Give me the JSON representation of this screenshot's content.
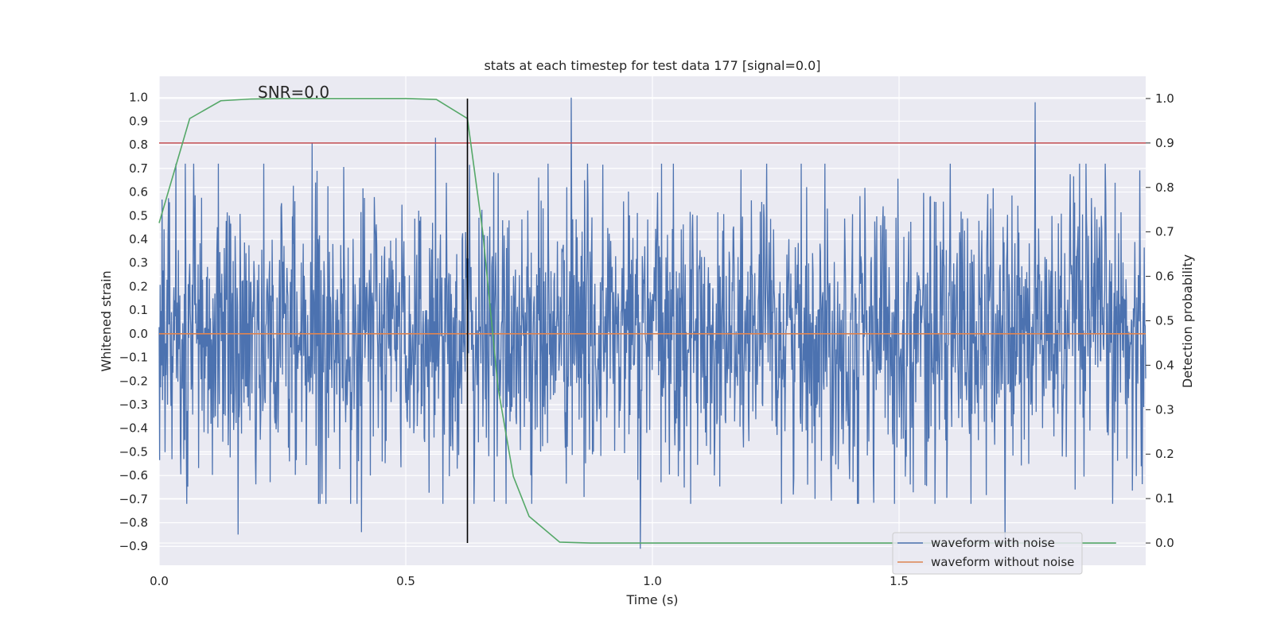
{
  "chart_data": {
    "type": "line",
    "title": "stats at each timestep for test data 177 [signal=0.0]",
    "xlabel": "Time (s)",
    "ylabel": "Whitened strain",
    "ylabel_right": "Detection probability",
    "annotation": "SNR=0.0",
    "xlim": [
      0.0,
      2.0
    ],
    "ylim": [
      -0.98,
      1.09
    ],
    "ylim_right": [
      -0.05,
      1.05
    ],
    "x_ticks": [
      0.0,
      0.5,
      1.0,
      1.5
    ],
    "x_tick_labels": [
      "0.0",
      "0.5",
      "1.0",
      "1.5"
    ],
    "y_ticks": [
      1.0,
      0.9,
      0.8,
      0.7,
      0.6,
      0.5,
      0.4,
      0.3,
      0.2,
      0.1,
      0.0,
      -0.1,
      -0.2,
      -0.3,
      -0.4,
      -0.5,
      -0.6,
      -0.7,
      -0.8,
      -0.9
    ],
    "y_tick_labels": [
      "1.0",
      "0.9",
      "0.8",
      "0.7",
      "0.6",
      "0.5",
      "0.4",
      "0.3",
      "0.2",
      "0.1",
      "0.0",
      "−0.1",
      "−0.2",
      "−0.3",
      "−0.4",
      "−0.5",
      "−0.6",
      "−0.7",
      "−0.8",
      "−0.9"
    ],
    "y_right_ticks": [
      1.0,
      0.9,
      0.8,
      0.7,
      0.6,
      0.5,
      0.4,
      0.3,
      0.2,
      0.1,
      0.0
    ],
    "y_right_tick_labels": [
      "1.0",
      "0.9",
      "0.8",
      "0.7",
      "0.6",
      "0.5",
      "0.4",
      "0.3",
      "0.2",
      "0.1",
      "0.0"
    ],
    "grid": true,
    "legend_position": "lower-right",
    "series": [
      {
        "name": "waveform with noise",
        "color": "#4c72b0",
        "kind": "noise",
        "n_samples": 2000,
        "std": 0.3,
        "peaks": [
          {
            "x": 0.835,
            "y": 1.0
          },
          {
            "x": 1.776,
            "y": 0.98
          },
          {
            "x": 0.31,
            "y": 0.81
          },
          {
            "x": 0.56,
            "y": 0.83
          },
          {
            "x": 0.975,
            "y": -0.91
          },
          {
            "x": 1.715,
            "y": -0.87
          },
          {
            "x": 0.16,
            "y": -0.85
          },
          {
            "x": 0.41,
            "y": -0.84
          }
        ]
      },
      {
        "name": "waveform without noise",
        "color": "#dd8452",
        "x": [
          0.0,
          2.0
        ],
        "y": [
          0.0,
          0.0
        ]
      },
      {
        "name": "detection probability",
        "color": "#55a868",
        "axis": "right",
        "x": [
          0.0,
          0.062,
          0.125,
          0.187,
          0.25,
          0.312,
          0.375,
          0.437,
          0.5,
          0.562,
          0.625,
          0.656,
          0.687,
          0.718,
          0.75,
          0.812,
          0.875,
          0.937,
          1.0,
          1.25,
          1.5,
          1.75,
          1.94
        ],
        "y": [
          0.72,
          0.955,
          0.995,
          0.999,
          1.0,
          1.0,
          1.0,
          1.0,
          1.0,
          0.998,
          0.955,
          0.7,
          0.35,
          0.15,
          0.06,
          0.002,
          0.0,
          0.0,
          0.0,
          0.0,
          0.0,
          0.0,
          0.0
        ]
      }
    ],
    "threshold": {
      "axis": "right",
      "y": 0.9,
      "color": "#c44e52"
    },
    "vline": {
      "x": 0.625,
      "color": "#000000"
    }
  }
}
